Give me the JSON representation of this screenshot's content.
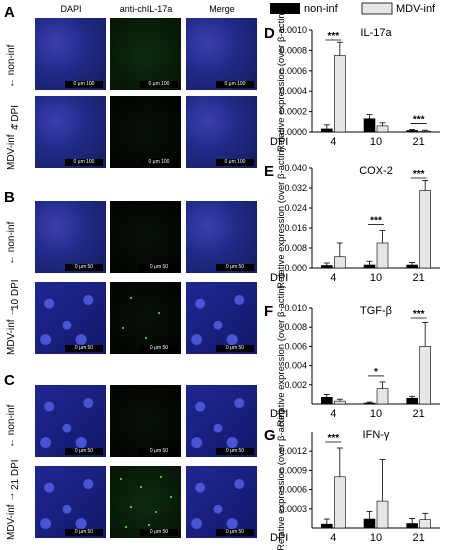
{
  "panels": {
    "A": "A",
    "B": "B",
    "C": "C",
    "D": "D",
    "E": "E",
    "F": "F",
    "G": "G"
  },
  "columns": [
    "DAPI",
    "anti-chIL-17a",
    "Merge"
  ],
  "rows": {
    "A_top": "non-inf",
    "A_bottom": "MDV-inf",
    "A_dpi": "4 DPI",
    "B_top": "non-inf",
    "B_bottom": "MDV-inf",
    "B_dpi": "10 DPI",
    "C_top": "non-inf",
    "C_bottom": "MDV-inf",
    "C_dpi": "21 DPI"
  },
  "scalebars": {
    "A": "0  μm  100",
    "B": "0  μm  50",
    "C": "0  μm  50"
  },
  "legend": {
    "non_inf": "non-inf",
    "mdv_inf": "MDV-inf"
  },
  "colors": {
    "non_inf": "#000000",
    "mdv_inf": "#e6e6e6"
  },
  "chart_data": [
    {
      "type": "bar",
      "panel": "D",
      "title": "IL-17a",
      "xlabel": "DPI",
      "ylabel": "Relative expression (over β-actin)",
      "categories": [
        "4",
        "10",
        "21"
      ],
      "ylim": [
        0,
        0.001
      ],
      "yticks": [
        "0.0010",
        "0.0008",
        "0.0006",
        "0.0004",
        "0.0002",
        "0.0000"
      ],
      "series": [
        {
          "name": "non-inf",
          "values": [
            3e-05,
            0.00013,
            1.5e-05
          ],
          "err": [
            4e-05,
            4e-05,
            1e-05
          ]
        },
        {
          "name": "MDV-inf",
          "values": [
            0.00075,
            6e-05,
            8e-06
          ],
          "err": [
            0.00013,
            3e-05,
            1e-05
          ]
        }
      ],
      "significance": [
        {
          "category": "4",
          "label": "***"
        },
        {
          "category": "21",
          "label": "***"
        }
      ]
    },
    {
      "type": "bar",
      "panel": "E",
      "title": "COX-2",
      "xlabel": "DPI",
      "ylabel": "Relative expression (over β-actin)",
      "categories": [
        "4",
        "10",
        "21"
      ],
      "ylim": [
        0,
        0.04
      ],
      "yticks": [
        "0.040",
        "0.032",
        "0.024",
        "0.016",
        "0.008",
        "0.000"
      ],
      "series": [
        {
          "name": "non-inf",
          "values": [
            0.001,
            0.0012,
            0.0012
          ],
          "err": [
            0.001,
            0.0015,
            0.001
          ]
        },
        {
          "name": "MDV-inf",
          "values": [
            0.0045,
            0.01,
            0.031
          ],
          "err": [
            0.0055,
            0.005,
            0.004
          ]
        }
      ],
      "significance": [
        {
          "category": "10",
          "label": "***"
        },
        {
          "category": "21",
          "label": "***"
        }
      ]
    },
    {
      "type": "bar",
      "panel": "F",
      "title": "TGF-β",
      "xlabel": "DPI",
      "ylabel": "Relative expression (over β-actin)",
      "categories": [
        "4",
        "10",
        "21"
      ],
      "ylim": [
        0,
        0.01
      ],
      "yticks": [
        "0.010",
        "0.008",
        "0.006",
        "0.004",
        "0.002"
      ],
      "series": [
        {
          "name": "non-inf",
          "values": [
            0.0007,
            0.0001,
            0.0006
          ],
          "err": [
            0.0003,
            0.0001,
            0.0002
          ]
        },
        {
          "name": "MDV-inf",
          "values": [
            0.0003,
            0.0016,
            0.006
          ],
          "err": [
            0.0002,
            0.0007,
            0.0025
          ]
        }
      ],
      "significance": [
        {
          "category": "10",
          "label": "*"
        },
        {
          "category": "21",
          "label": "***"
        }
      ]
    },
    {
      "type": "bar",
      "panel": "G",
      "title": "IFN-γ",
      "xlabel": "DPI",
      "ylabel": "Relative expression (over β-actin)",
      "categories": [
        "4",
        "10",
        "21"
      ],
      "ylim": [
        0,
        0.0015
      ],
      "yticks": [
        "0.0012",
        "0.0009",
        "0.0006",
        "0.0003"
      ],
      "series": [
        {
          "name": "non-inf",
          "values": [
            6e-05,
            0.00014,
            7e-05
          ],
          "err": [
            8e-05,
            0.00012,
            8e-05
          ]
        },
        {
          "name": "MDV-inf",
          "values": [
            0.0008,
            0.00042,
            0.00013
          ],
          "err": [
            0.00045,
            0.00065,
            0.0001
          ]
        }
      ],
      "significance": [
        {
          "category": "4",
          "label": "***"
        }
      ]
    }
  ]
}
